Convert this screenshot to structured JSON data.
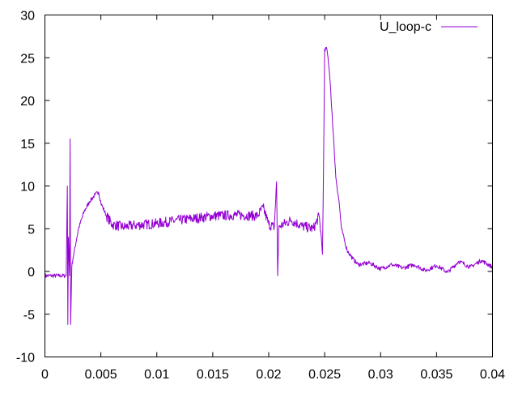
{
  "chart_data": {
    "type": "line",
    "title": "",
    "xlabel": "",
    "ylabel": "",
    "xlim": [
      0,
      0.04
    ],
    "ylim": [
      -10,
      30
    ],
    "grid": false,
    "legend_position": "top-right",
    "x_ticks": [
      "0",
      "0.005",
      "0.01",
      "0.015",
      "0.02",
      "0.025",
      "0.03",
      "0.035",
      "0.04"
    ],
    "x_tick_values": [
      0,
      0.005,
      0.01,
      0.015,
      0.02,
      0.025,
      0.03,
      0.035,
      0.04
    ],
    "y_ticks": [
      "-10",
      "-5",
      "0",
      "5",
      "10",
      "15",
      "20",
      "25",
      "30"
    ],
    "y_tick_values": [
      -10,
      -5,
      0,
      5,
      10,
      15,
      20,
      25,
      30
    ],
    "series": [
      {
        "name": "U_loop-c",
        "color": "#9400d3",
        "x": [
          0,
          0.0019,
          0.00195,
          0.002,
          0.00205,
          0.0021,
          0.0022,
          0.00225,
          0.0023,
          0.0024,
          0.0025,
          0.003,
          0.0035,
          0.004,
          0.0045,
          0.0048,
          0.005,
          0.0055,
          0.006,
          0.007,
          0.008,
          0.01,
          0.012,
          0.014,
          0.015,
          0.017,
          0.019,
          0.0195,
          0.02,
          0.0205,
          0.0207,
          0.0208,
          0.0209,
          0.021,
          0.022,
          0.023,
          0.024,
          0.0245,
          0.0247,
          0.0248,
          0.0249,
          0.025,
          0.0252,
          0.0253,
          0.0255,
          0.026,
          0.0263,
          0.0265,
          0.027,
          0.0275,
          0.028,
          0.029,
          0.03,
          0.031,
          0.032,
          0.033,
          0.034,
          0.035,
          0.036,
          0.037,
          0.038,
          0.039,
          0.04
        ],
        "y": [
          -0.5,
          -0.5,
          5,
          10,
          -6.2,
          4,
          -0.5,
          15.5,
          -6.2,
          0.5,
          1.5,
          5,
          7,
          8.2,
          9,
          9.3,
          8,
          6.5,
          5.5,
          5.2,
          5.4,
          5.6,
          6,
          6.3,
          6.5,
          6.6,
          6.5,
          7.5,
          5.5,
          5.2,
          10.5,
          -0.5,
          5,
          5.3,
          6,
          5.3,
          5,
          6.5,
          4,
          2,
          12,
          26,
          26,
          25,
          22,
          11,
          8,
          5,
          2.5,
          1.5,
          0.8,
          1,
          0.3,
          0.8,
          0.4,
          0.8,
          0.1,
          0.7,
          -0.1,
          1.2,
          0.5,
          1.3,
          0.5
        ]
      }
    ]
  }
}
